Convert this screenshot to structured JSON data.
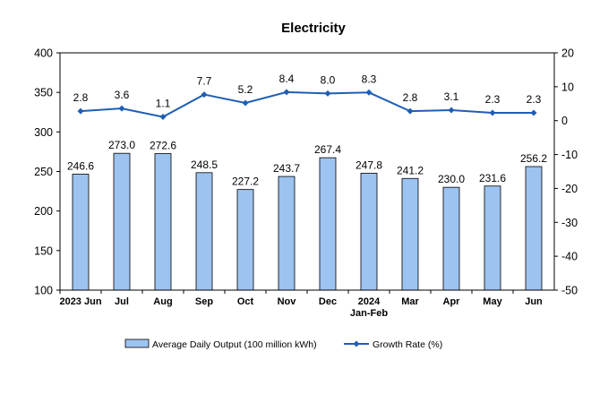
{
  "chart_data": {
    "type": "bar",
    "title": "Electricity",
    "categories": [
      "2023 Jun",
      "Jul",
      "Aug",
      "Sep",
      "Oct",
      "Nov",
      "Dec",
      "2024 Jan-Feb",
      "Mar",
      "Apr",
      "May",
      "Jun"
    ],
    "series": [
      {
        "name": "Average Daily Output (100 million kWh)",
        "type": "bar",
        "axis": "left",
        "color": "#9dc3f0",
        "values": [
          246.6,
          273.0,
          272.6,
          248.5,
          227.2,
          243.7,
          267.4,
          247.8,
          241.2,
          230.0,
          231.6,
          256.2
        ],
        "labels": [
          "246.6",
          "273.0",
          "272.6",
          "248.5",
          "227.2",
          "243.7",
          "267.4",
          "247.8",
          "241.2",
          "230.0",
          "231.6",
          "256.2"
        ]
      },
      {
        "name": "Growth Rate (%)",
        "type": "line",
        "axis": "right",
        "color": "#1f5eb4",
        "values": [
          2.8,
          3.6,
          1.1,
          7.7,
          5.2,
          8.4,
          8.0,
          8.3,
          2.8,
          3.1,
          2.3,
          2.3
        ],
        "labels": [
          "2.8",
          "3.6",
          "1.1",
          "7.7",
          "5.2",
          "8.4",
          "8.0",
          "8.3",
          "2.8",
          "3.1",
          "2.3",
          "2.3"
        ]
      }
    ],
    "y_left": {
      "min": 100,
      "max": 400,
      "step": 50,
      "ticks": [
        "100",
        "150",
        "200",
        "250",
        "300",
        "350",
        "400"
      ]
    },
    "y_right": {
      "min": -50,
      "max": 20,
      "step": 10,
      "ticks": [
        "-50",
        "-40",
        "-30",
        "-20",
        "-10",
        "0",
        "10",
        "20"
      ]
    },
    "grid": false,
    "legend_position": "bottom"
  }
}
